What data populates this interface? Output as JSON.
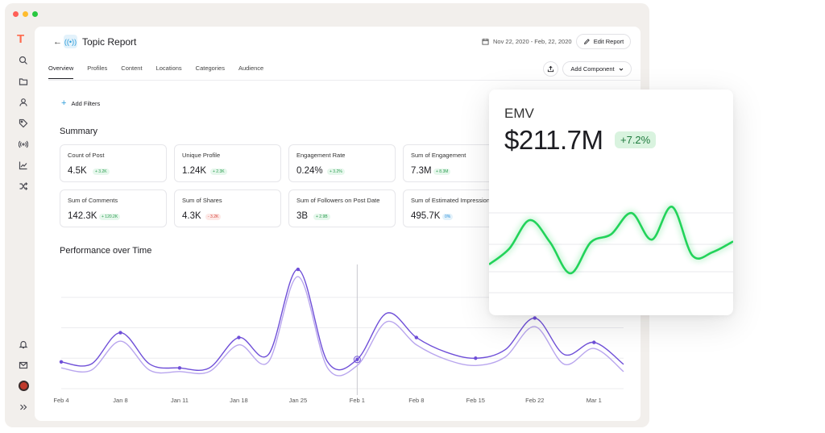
{
  "window": {
    "logo": "T"
  },
  "sidebar": {
    "icons": [
      "search-icon",
      "folder-icon",
      "user-icon",
      "tag-icon",
      "broadcast-icon",
      "trend-chart-icon",
      "shuffle-icon"
    ],
    "bottom_icons": [
      "bell-icon",
      "mail-icon",
      "avatar",
      "expand-icon"
    ]
  },
  "header": {
    "back_label": "←",
    "title": "Topic Report",
    "date_range": "Nov 22, 2020 - Feb, 22, 2020",
    "edit_label": "Edit Report"
  },
  "tabs": [
    {
      "label": "Overview",
      "active": true
    },
    {
      "label": "Profiles",
      "active": false
    },
    {
      "label": "Content",
      "active": false
    },
    {
      "label": "Locations",
      "active": false
    },
    {
      "label": "Categories",
      "active": false
    },
    {
      "label": "Audience",
      "active": false
    }
  ],
  "toolbar": {
    "add_component_label": "Add Component"
  },
  "filters": {
    "add_label": "Add Filters"
  },
  "summary": {
    "title": "Summary",
    "cards": [
      {
        "label": "Count of Post",
        "value": "4.5K",
        "delta": "+ 3.2K",
        "trend": "up"
      },
      {
        "label": "Unique Profile",
        "value": "1.24K",
        "delta": "+ 2.3K",
        "trend": "up"
      },
      {
        "label": "Engagement Rate",
        "value": "0.24%",
        "delta": "+ 3.2%",
        "trend": "up"
      },
      {
        "label": "Sum of Engagement",
        "value": "7.3M",
        "delta": "+ 8.3M",
        "trend": "up"
      },
      {
        "label": "Sum of Comments",
        "value": "142.3K",
        "delta": "+ 120.2K",
        "trend": "up"
      },
      {
        "label": "Sum of Shares",
        "value": "4.3K",
        "delta": "- 3.2K",
        "trend": "down"
      },
      {
        "label": "Sum of Followers on Post Date",
        "value": "3B",
        "delta": "+ 2.9B",
        "trend": "up"
      },
      {
        "label": "Sum of Estimated Impressions",
        "value": "495.7K",
        "delta": "0%",
        "trend": "flat"
      }
    ]
  },
  "performance": {
    "title": "Performance over Time",
    "colors": {
      "primary": "#6f4fd8",
      "secondary": "#b9a6ee",
      "grid": "#ececef"
    }
  },
  "chart_data": [
    {
      "type": "line",
      "title": "Performance over Time",
      "categories": [
        "Feb 4",
        "Jan 8",
        "Jan 11",
        "Jan 18",
        "Jan 25",
        "Feb 1",
        "Feb 8",
        "Feb 15",
        "Feb 22",
        "Mar 1"
      ],
      "x": [
        0,
        0.5,
        1,
        1.5,
        2,
        2.5,
        3,
        3.5,
        4,
        4.5,
        5,
        5.5,
        6,
        6.5,
        7,
        7.5,
        8,
        8.5,
        9,
        9.5
      ],
      "ylim": [
        0,
        100
      ],
      "grid": true,
      "series": [
        {
          "values": [
            22,
            20,
            46,
            20,
            17,
            17,
            42,
            28,
            98,
            22,
            24,
            62,
            42,
            30,
            25,
            32,
            58,
            28,
            38,
            20
          ]
        },
        {
          "values": [
            17,
            15,
            39,
            15,
            14,
            14,
            36,
            22,
            92,
            17,
            19,
            55,
            36,
            24,
            19,
            26,
            51,
            20,
            33,
            14
          ]
        }
      ]
    },
    {
      "type": "line",
      "title": "EMV",
      "x": [
        0,
        1,
        2,
        3,
        4,
        5,
        6,
        7,
        8,
        9,
        10,
        11,
        12
      ],
      "ylim": [
        0,
        100
      ],
      "grid": true,
      "series": [
        {
          "values": [
            30,
            48,
            80,
            55,
            20,
            55,
            64,
            88,
            58,
            95,
            40,
            44,
            56
          ]
        }
      ]
    }
  ],
  "emv": {
    "label": "EMV",
    "value": "$211.7M",
    "delta": "+7.2%",
    "line_color": "#22d35a"
  }
}
